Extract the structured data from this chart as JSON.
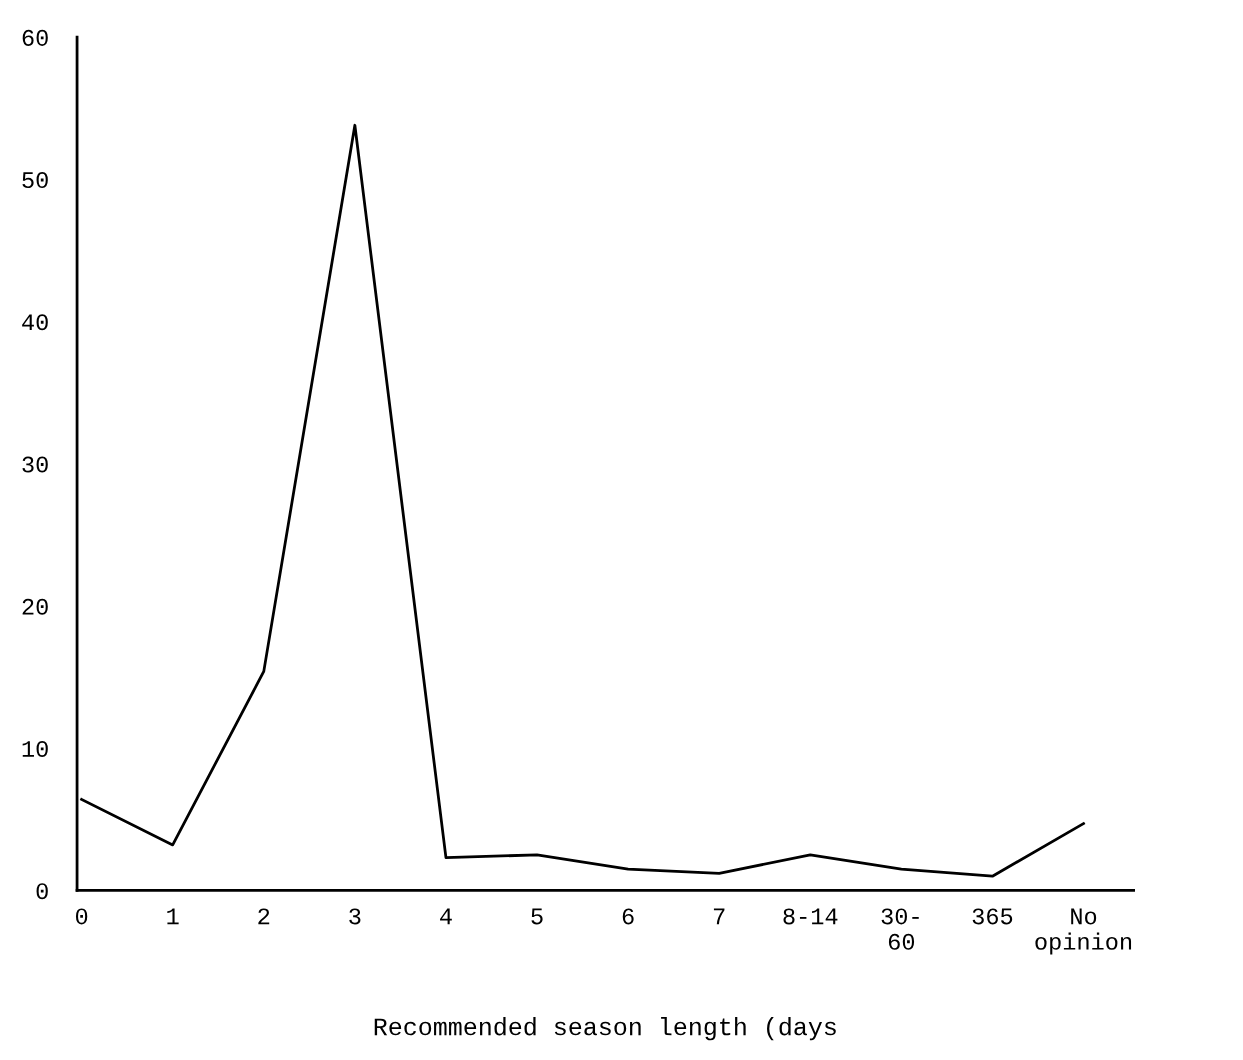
{
  "chart_data": {
    "type": "line",
    "xlabel": "Recommended season length (days",
    "categories": [
      "0",
      "1",
      "2",
      "3",
      "4",
      "5",
      "6",
      "7",
      "8-14",
      "30-\n60",
      "365",
      "No\nopinion"
    ],
    "series": [
      {
        "color": "#000000",
        "values": [
          6.4,
          3.2,
          15.4,
          53.8,
          2.3,
          2.5,
          1.5,
          1.2,
          2.5,
          1.5,
          1.0,
          4.7
        ]
      }
    ],
    "ylim": [
      0,
      60
    ],
    "yticks": [
      0,
      10,
      20,
      30,
      40,
      50,
      60
    ],
    "grid": false,
    "legend": false,
    "marker": "none",
    "line_style": "solid"
  }
}
